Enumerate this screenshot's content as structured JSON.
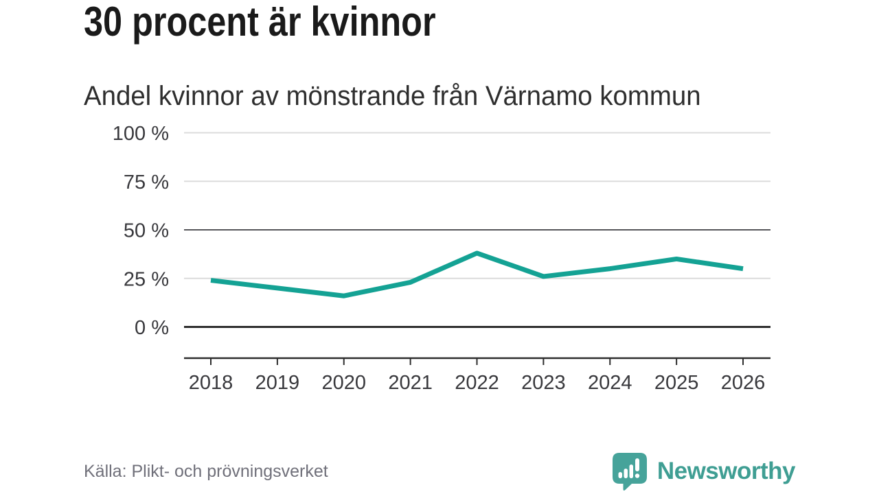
{
  "header": {
    "title": "30 procent är kvinnor",
    "subtitle": "Andel kvinnor av mönstrande från Värnamo kommun"
  },
  "chart_data": {
    "type": "line",
    "x": [
      "2018",
      "2019",
      "2020",
      "2021",
      "2022",
      "2023",
      "2024",
      "2025",
      "2026"
    ],
    "series": [
      {
        "name": "Andel kvinnor av mönstrande från Värnamo kommun",
        "values": [
          24,
          20,
          16,
          23,
          38,
          26,
          30,
          35,
          30
        ]
      }
    ],
    "y_ticks": [
      {
        "value": 0,
        "label": "0 %"
      },
      {
        "value": 25,
        "label": "25 %"
      },
      {
        "value": 50,
        "label": "50 %"
      },
      {
        "value": 75,
        "label": "75 %"
      },
      {
        "value": 100,
        "label": "100 %"
      }
    ],
    "ylim": [
      0,
      100
    ],
    "grid": true,
    "legend": "none",
    "line_color": "#14a294",
    "emphasized_gridlines": [
      0,
      50
    ]
  },
  "footer": {
    "source": "Källa: Plikt- och prövningsverket",
    "brand": "Newsworthy",
    "brand_color": "#3f9e93"
  }
}
